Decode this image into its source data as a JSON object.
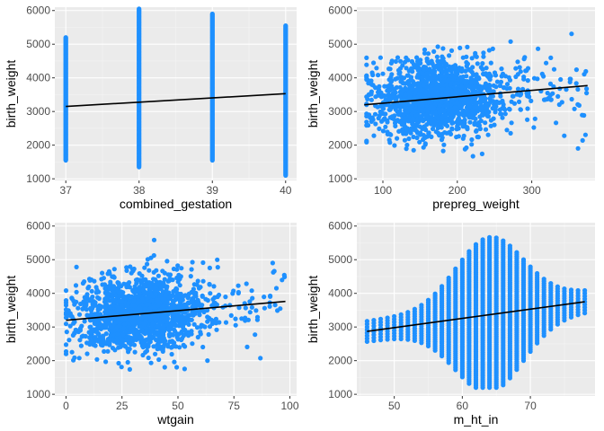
{
  "figure": {
    "panel_background": "#EBEBEB",
    "grid_major_color": "#FFFFFF",
    "grid_minor_color": "#F4F4F4",
    "point_color": "#1E90FF",
    "line_color": "#000000",
    "tick_text_color": "#4D4D4D",
    "axis_title_color": "#000000"
  },
  "chart_data": [
    {
      "type": "scatter",
      "xlabel": "combined_gestation",
      "ylabel": "birth_weight",
      "xlim": [
        36.85,
        40.15
      ],
      "ylim": [
        950,
        6100
      ],
      "xticks": [
        37,
        38,
        39,
        40
      ],
      "yticks": [
        1000,
        2000,
        3000,
        4000,
        5000,
        6000
      ],
      "discrete_x": [
        37,
        38,
        39,
        40
      ],
      "column_ranges": [
        {
          "x": 37,
          "min": 1550,
          "max": 5200
        },
        {
          "x": 38,
          "min": 1350,
          "max": 6050
        },
        {
          "x": 39,
          "min": 1550,
          "max": 5900
        },
        {
          "x": 40,
          "min": 1100,
          "max": 5550
        }
      ],
      "trend": {
        "x": [
          37,
          40
        ],
        "y": [
          3150,
          3530
        ]
      },
      "grid": true
    },
    {
      "type": "scatter",
      "xlabel": "prepreg_weight",
      "ylabel": "birth_weight",
      "xlim": [
        65,
        385
      ],
      "ylim": [
        950,
        6100
      ],
      "xticks": [
        100,
        200,
        300
      ],
      "yticks": [
        1000,
        2000,
        3000,
        4000,
        5000,
        6000
      ],
      "cloud": {
        "x_center": 175,
        "x_spread": 40,
        "x_min": 78,
        "x_max": 375,
        "y_center": 3350,
        "y_spread": 560
      },
      "trend": {
        "x": [
          75,
          375
        ],
        "y": [
          3200,
          3770
        ]
      },
      "grid": true
    },
    {
      "type": "scatter",
      "xlabel": "wtgain",
      "ylabel": "birth_weight",
      "xlim": [
        -5,
        103
      ],
      "ylim": [
        950,
        6100
      ],
      "xticks": [
        0,
        25,
        50,
        75,
        100
      ],
      "yticks": [
        1000,
        2000,
        3000,
        4000,
        5000,
        6000
      ],
      "cloud": {
        "x_center": 33,
        "x_spread": 14,
        "x_min": 0,
        "x_max": 98,
        "y_center": 3350,
        "y_spread": 560
      },
      "trend": {
        "x": [
          0,
          98
        ],
        "y": [
          3200,
          3760
        ]
      },
      "grid": true
    },
    {
      "type": "scatter",
      "xlabel": "m_ht_in",
      "ylabel": "birth_weight",
      "xlim": [
        44.5,
        79.5
      ],
      "ylim": [
        950,
        6100
      ],
      "xticks": [
        50,
        60,
        70
      ],
      "yticks": [
        1000,
        2000,
        3000,
        4000,
        5000,
        6000
      ],
      "discrete_x_range": [
        46,
        78
      ],
      "cloud": {
        "x_center": 64,
        "x_spread": 5,
        "y_center": 3350,
        "y_spread": 560
      },
      "trend": {
        "x": [
          46,
          78
        ],
        "y": [
          2870,
          3750
        ]
      },
      "grid": true
    }
  ]
}
